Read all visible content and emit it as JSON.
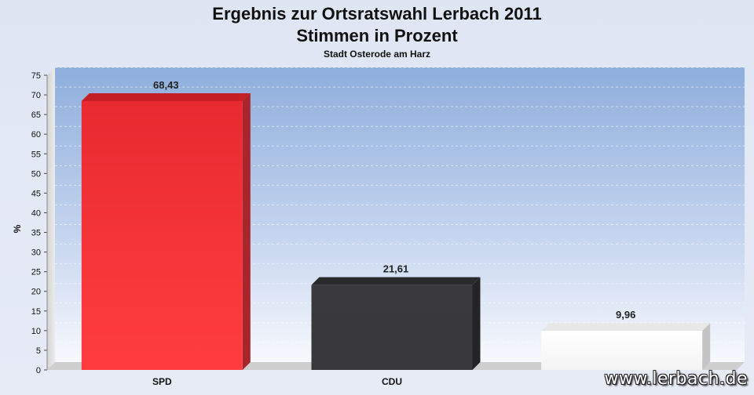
{
  "chart_data": {
    "type": "bar",
    "title_line1": "Ergebnis zur Ortsratswahl Lerbach 2011",
    "title_line2": "Stimmen in Prozent",
    "subtitle": "Stadt Osterode am Harz",
    "ylabel": "%",
    "xlabel": "",
    "ylim": [
      0,
      75
    ],
    "yticks": [
      0,
      5,
      10,
      15,
      20,
      25,
      30,
      35,
      40,
      45,
      50,
      55,
      60,
      65,
      70,
      75
    ],
    "grid": true,
    "categories": [
      "SPD",
      "CDU",
      ""
    ],
    "values": [
      68.43,
      21.61,
      9.96
    ],
    "value_labels": [
      "68,43",
      "21,61",
      "9,96"
    ],
    "colors": [
      "#e8262c",
      "#3a3a3c",
      "#ffffff"
    ]
  },
  "watermark": "www.lerbach.de"
}
